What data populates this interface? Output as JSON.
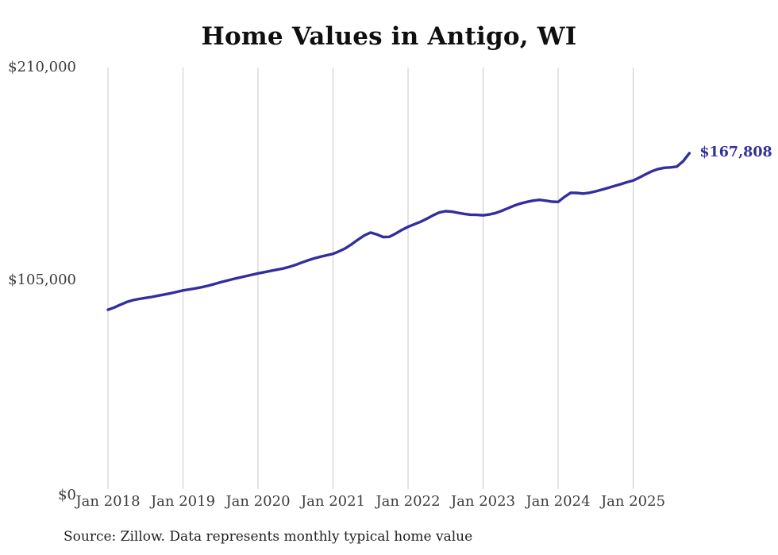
{
  "title": "Home Values in Antigo, WI",
  "source_note": "Source: Zillow. Data represents monthly typical home value",
  "colors": {
    "line": "#332e9e",
    "end_label_text": "#332e9e",
    "grid": "#c9c9c9",
    "tick_text": "#3c3c3c",
    "title_text": "#0f0f0f",
    "background": "#ffffff"
  },
  "chart_data": {
    "type": "line",
    "title": "Home Values in Antigo, WI",
    "xlabel": "",
    "ylabel": "",
    "legend": "none",
    "grid": "vertical-only",
    "ylim": [
      0,
      210000
    ],
    "y_tick_labels": [
      "$210,000",
      "$105,000",
      "$0"
    ],
    "y_tick_values": [
      210000,
      105000,
      0
    ],
    "x_tick_labels": [
      "Jan 2018",
      "Jan 2019",
      "Jan 2020",
      "Jan 2021",
      "Jan 2022",
      "Jan 2023",
      "Jan 2024",
      "Jan 2025"
    ],
    "end_label": "$167,808",
    "final_value": 167808,
    "x": [
      "2018-01",
      "2018-02",
      "2018-03",
      "2018-04",
      "2018-05",
      "2018-06",
      "2018-07",
      "2018-08",
      "2018-09",
      "2018-10",
      "2018-11",
      "2018-12",
      "2019-01",
      "2019-02",
      "2019-03",
      "2019-04",
      "2019-05",
      "2019-06",
      "2019-07",
      "2019-08",
      "2019-09",
      "2019-10",
      "2019-11",
      "2019-12",
      "2020-01",
      "2020-02",
      "2020-03",
      "2020-04",
      "2020-05",
      "2020-06",
      "2020-07",
      "2020-08",
      "2020-09",
      "2020-10",
      "2020-11",
      "2020-12",
      "2021-01",
      "2021-02",
      "2021-03",
      "2021-04",
      "2021-05",
      "2021-06",
      "2021-07",
      "2021-08",
      "2021-09",
      "2021-10",
      "2021-11",
      "2021-12",
      "2022-01",
      "2022-02",
      "2022-03",
      "2022-04",
      "2022-05",
      "2022-06",
      "2022-07",
      "2022-08",
      "2022-09",
      "2022-10",
      "2022-11",
      "2022-12",
      "2023-01",
      "2023-02",
      "2023-03",
      "2023-04",
      "2023-05",
      "2023-06",
      "2023-07",
      "2023-08",
      "2023-09",
      "2023-10",
      "2023-11",
      "2023-12",
      "2024-01",
      "2024-02",
      "2024-03",
      "2024-04",
      "2024-05",
      "2024-06",
      "2024-07",
      "2024-08",
      "2024-09",
      "2024-10",
      "2024-11",
      "2024-12",
      "2025-01",
      "2025-02",
      "2025-03",
      "2025-04",
      "2025-05",
      "2025-06",
      "2025-07",
      "2025-08",
      "2025-09",
      "2025-10"
    ],
    "values": [
      90700,
      91800,
      93200,
      94500,
      95400,
      96000,
      96500,
      97000,
      97600,
      98200,
      98800,
      99500,
      100200,
      100700,
      101200,
      101800,
      102500,
      103300,
      104200,
      105000,
      105800,
      106500,
      107200,
      107900,
      108600,
      109200,
      109800,
      110400,
      111000,
      111800,
      112800,
      113900,
      115000,
      116000,
      116800,
      117500,
      118200,
      119500,
      121000,
      123000,
      125200,
      127300,
      128700,
      127800,
      126500,
      126600,
      128200,
      130000,
      131500,
      132800,
      134000,
      135500,
      137200,
      138600,
      139200,
      139000,
      138400,
      137900,
      137500,
      137400,
      137200,
      137600,
      138300,
      139400,
      140700,
      142000,
      143000,
      143800,
      144400,
      144800,
      144400,
      143900,
      143800,
      146200,
      148300,
      148200,
      147900,
      148300,
      149000,
      149800,
      150700,
      151600,
      152500,
      153500,
      154300,
      155800,
      157400,
      158900,
      160000,
      160600,
      160800,
      161200,
      163800,
      167808
    ]
  }
}
